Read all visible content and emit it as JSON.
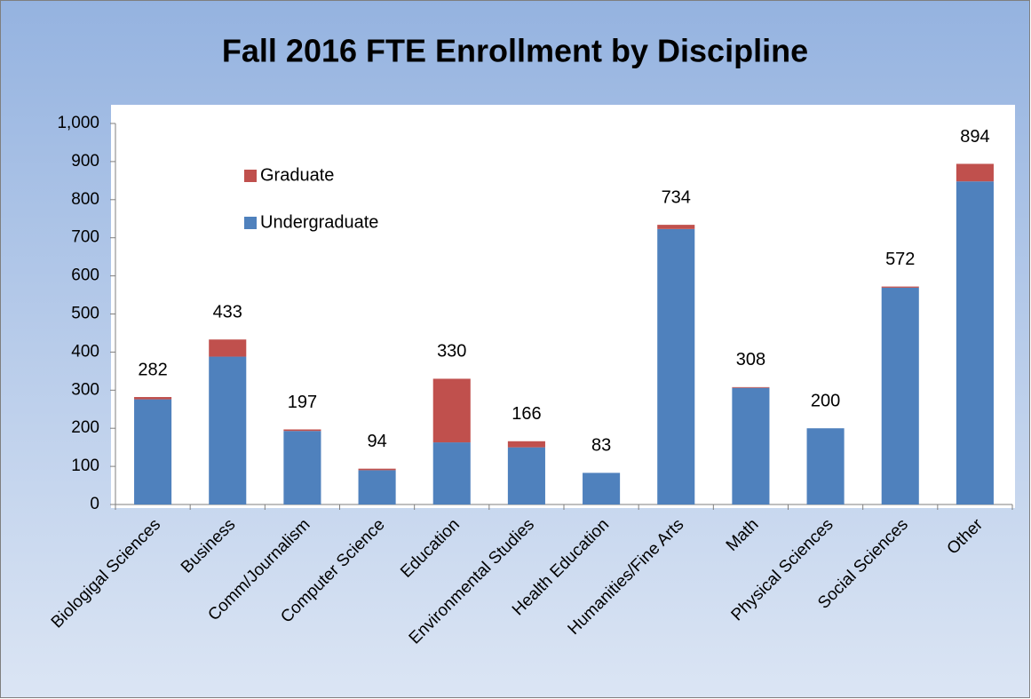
{
  "chart_data": {
    "type": "stacked_bar",
    "title": "Fall 2016 FTE Enrollment by Discipline",
    "categories": [
      "Biologigal Sciences",
      "Business",
      "Comm/Journalism",
      "Computer Science",
      "Education",
      "Environmental Studies",
      "Health Education",
      "Humanities/Fine Arts",
      "Math",
      "Physical Sciences",
      "Social Sciences",
      "Other"
    ],
    "series": [
      {
        "name": "Undergraduate",
        "color": "#4f81bd",
        "values": [
          276,
          388,
          193,
          90,
          163,
          150,
          83,
          723,
          306,
          200,
          569,
          848
        ]
      },
      {
        "name": "Graduate",
        "color": "#c0504d",
        "values": [
          6,
          45,
          4,
          4,
          167,
          16,
          0,
          11,
          2,
          0,
          3,
          46
        ]
      }
    ],
    "totals": [
      282,
      433,
      197,
      94,
      330,
      166,
      83,
      734,
      308,
      200,
      572,
      894
    ],
    "ylim": [
      0,
      1000
    ],
    "yticks": [
      0,
      100,
      200,
      300,
      400,
      500,
      600,
      700,
      800,
      900,
      {
        "value": 1000,
        "label": "1,000"
      }
    ],
    "grid": false,
    "legend": "upper left"
  }
}
